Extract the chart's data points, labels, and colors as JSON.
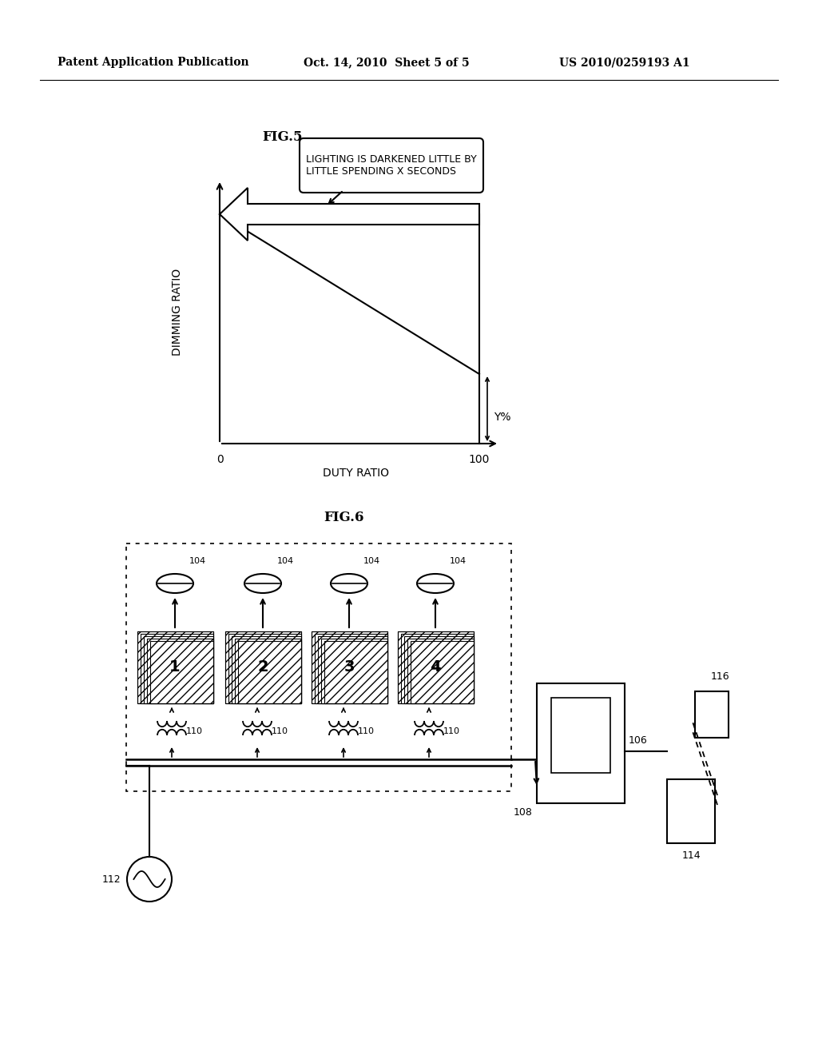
{
  "bg_color": "#ffffff",
  "header_left": "Patent Application Publication",
  "header_mid": "Oct. 14, 2010  Sheet 5 of 5",
  "header_right": "US 2010/0259193 A1",
  "fig5_label": "FIG.5",
  "fig6_label": "FIG.6",
  "callout_text": "LIGHTING IS DARKENED LITTLE BY\nLITTLE SPENDING X SECONDS",
  "xlabel": "DUTY RATIO",
  "ylabel": "DIMMING RATIO",
  "x_tick_0": "0",
  "x_tick_100": "100",
  "y_label_y": "Y%",
  "label_104": "104",
  "label_110": "110",
  "label_112": "112",
  "label_108": "108",
  "label_106": "106",
  "label_114": "114",
  "label_116": "116",
  "panel_numbers": [
    "1",
    "2",
    "3",
    "4"
  ]
}
